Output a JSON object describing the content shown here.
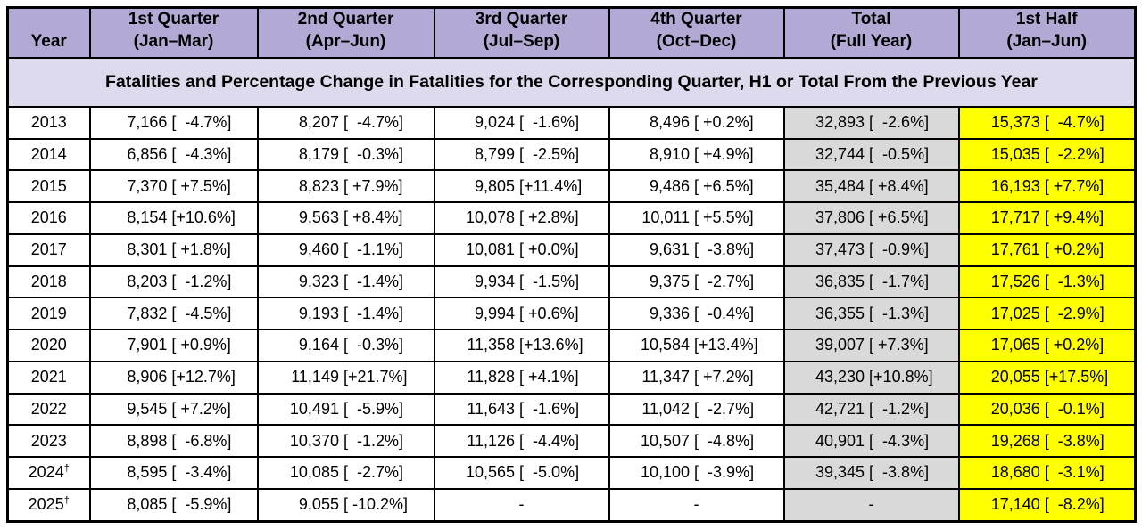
{
  "colors": {
    "header_bg": "#b2aad4",
    "banner_bg": "#dedaed",
    "total_column_bg": "#d9d9d9",
    "first_half_column_bg": "#ffff00",
    "border": "#000000",
    "text": "#000000"
  },
  "table": {
    "banner": "Fatalities and Percentage Change in Fatalities for the Corresponding Quarter, H1 or Total From the Previous Year",
    "columns": [
      {
        "title": "Year",
        "sub": ""
      },
      {
        "title": "1st Quarter",
        "sub": "(Jan–Mar)"
      },
      {
        "title": "2nd Quarter",
        "sub": "(Apr–Jun)"
      },
      {
        "title": "3rd Quarter",
        "sub": "(Jul–Sep)"
      },
      {
        "title": "4th Quarter",
        "sub": "(Oct–Dec)"
      },
      {
        "title": "Total",
        "sub": "(Full Year)"
      },
      {
        "title": "1st Half",
        "sub": "(Jan–Jun)"
      }
    ],
    "rows": [
      {
        "year": "2013",
        "sup": "",
        "cells": [
          {
            "num": "7,166",
            "pct": "[  -4.7%]"
          },
          {
            "num": "8,207",
            "pct": "[  -4.7%]"
          },
          {
            "num": "9,024",
            "pct": "[  -1.6%]"
          },
          {
            "num": "8,496",
            "pct": "[ +0.2%]"
          },
          {
            "num": "32,893",
            "pct": "[  -2.6%]"
          },
          {
            "num": "15,373",
            "pct": "[  -4.7%]"
          }
        ]
      },
      {
        "year": "2014",
        "sup": "",
        "cells": [
          {
            "num": "6,856",
            "pct": "[  -4.3%]"
          },
          {
            "num": "8,179",
            "pct": "[  -0.3%]"
          },
          {
            "num": "8,799",
            "pct": "[  -2.5%]"
          },
          {
            "num": "8,910",
            "pct": "[ +4.9%]"
          },
          {
            "num": "32,744",
            "pct": "[  -0.5%]"
          },
          {
            "num": "15,035",
            "pct": "[  -2.2%]"
          }
        ]
      },
      {
        "year": "2015",
        "sup": "",
        "cells": [
          {
            "num": "7,370",
            "pct": "[ +7.5%]"
          },
          {
            "num": "8,823",
            "pct": "[ +7.9%]"
          },
          {
            "num": "9,805",
            "pct": "[+11.4%]"
          },
          {
            "num": "9,486",
            "pct": "[ +6.5%]"
          },
          {
            "num": "35,484",
            "pct": "[ +8.4%]"
          },
          {
            "num": "16,193",
            "pct": "[ +7.7%]"
          }
        ]
      },
      {
        "year": "2016",
        "sup": "",
        "cells": [
          {
            "num": "8,154",
            "pct": "[+10.6%]"
          },
          {
            "num": "9,563",
            "pct": "[ +8.4%]"
          },
          {
            "num": "10,078",
            "pct": "[ +2.8%]"
          },
          {
            "num": "10,011",
            "pct": "[ +5.5%]"
          },
          {
            "num": "37,806",
            "pct": "[ +6.5%]"
          },
          {
            "num": "17,717",
            "pct": "[ +9.4%]"
          }
        ]
      },
      {
        "year": "2017",
        "sup": "",
        "cells": [
          {
            "num": "8,301",
            "pct": "[ +1.8%]"
          },
          {
            "num": "9,460",
            "pct": "[  -1.1%]"
          },
          {
            "num": "10,081",
            "pct": "[ +0.0%]"
          },
          {
            "num": "9,631",
            "pct": "[  -3.8%]"
          },
          {
            "num": "37,473",
            "pct": "[  -0.9%]"
          },
          {
            "num": "17,761",
            "pct": "[ +0.2%]"
          }
        ]
      },
      {
        "year": "2018",
        "sup": "",
        "cells": [
          {
            "num": "8,203",
            "pct": "[  -1.2%]"
          },
          {
            "num": "9,323",
            "pct": "[  -1.4%]"
          },
          {
            "num": "9,934",
            "pct": "[  -1.5%]"
          },
          {
            "num": "9,375",
            "pct": "[  -2.7%]"
          },
          {
            "num": "36,835",
            "pct": "[  -1.7%]"
          },
          {
            "num": "17,526",
            "pct": "[  -1.3%]"
          }
        ]
      },
      {
        "year": "2019",
        "sup": "",
        "cells": [
          {
            "num": "7,832",
            "pct": "[  -4.5%]"
          },
          {
            "num": "9,193",
            "pct": "[  -1.4%]"
          },
          {
            "num": "9,994",
            "pct": "[ +0.6%]"
          },
          {
            "num": "9,336",
            "pct": "[  -0.4%]"
          },
          {
            "num": "36,355",
            "pct": "[  -1.3%]"
          },
          {
            "num": "17,025",
            "pct": "[  -2.9%]"
          }
        ]
      },
      {
        "year": "2020",
        "sup": "",
        "cells": [
          {
            "num": "7,901",
            "pct": "[ +0.9%]"
          },
          {
            "num": "9,164",
            "pct": "[  -0.3%]"
          },
          {
            "num": "11,358",
            "pct": "[+13.6%]"
          },
          {
            "num": "10,584",
            "pct": "[+13.4%]"
          },
          {
            "num": "39,007",
            "pct": "[ +7.3%]"
          },
          {
            "num": "17,065",
            "pct": "[ +0.2%]"
          }
        ]
      },
      {
        "year": "2021",
        "sup": "",
        "cells": [
          {
            "num": "8,906",
            "pct": "[+12.7%]"
          },
          {
            "num": "11,149",
            "pct": "[+21.7%]"
          },
          {
            "num": "11,828",
            "pct": "[ +4.1%]"
          },
          {
            "num": "11,347",
            "pct": "[ +7.2%]"
          },
          {
            "num": "43,230",
            "pct": "[+10.8%]"
          },
          {
            "num": "20,055",
            "pct": "[+17.5%]"
          }
        ]
      },
      {
        "year": "2022",
        "sup": "",
        "cells": [
          {
            "num": "9,545",
            "pct": "[ +7.2%]"
          },
          {
            "num": "10,491",
            "pct": "[  -5.9%]"
          },
          {
            "num": "11,643",
            "pct": "[  -1.6%]"
          },
          {
            "num": "11,042",
            "pct": "[  -2.7%]"
          },
          {
            "num": "42,721",
            "pct": "[  -1.2%]"
          },
          {
            "num": "20,036",
            "pct": "[  -0.1%]"
          }
        ]
      },
      {
        "year": "2023",
        "sup": "",
        "cells": [
          {
            "num": "8,898",
            "pct": "[  -6.8%]"
          },
          {
            "num": "10,370",
            "pct": "[  -1.2%]"
          },
          {
            "num": "11,126",
            "pct": "[  -4.4%]"
          },
          {
            "num": "10,507",
            "pct": "[  -4.8%]"
          },
          {
            "num": "40,901",
            "pct": "[  -4.3%]"
          },
          {
            "num": "19,268",
            "pct": "[  -3.8%]"
          }
        ]
      },
      {
        "year": "2024",
        "sup": "†",
        "cells": [
          {
            "num": "8,595",
            "pct": "[  -3.4%]"
          },
          {
            "num": "10,085",
            "pct": "[  -2.7%]"
          },
          {
            "num": "10,565",
            "pct": "[  -5.0%]"
          },
          {
            "num": "10,100",
            "pct": "[  -3.9%]"
          },
          {
            "num": "39,345",
            "pct": "[  -3.8%]"
          },
          {
            "num": "18,680",
            "pct": "[  -3.1%]"
          }
        ]
      },
      {
        "year": "2025",
        "sup": "†",
        "cells": [
          {
            "num": "8,085",
            "pct": "[  -5.9%]"
          },
          {
            "num": "9,055",
            "pct": "[ -10.2%]"
          },
          {
            "dash": "-"
          },
          {
            "dash": "-"
          },
          {
            "dash": "-"
          },
          {
            "num": "17,140",
            "pct": "[  -8.2%]"
          }
        ]
      }
    ]
  }
}
